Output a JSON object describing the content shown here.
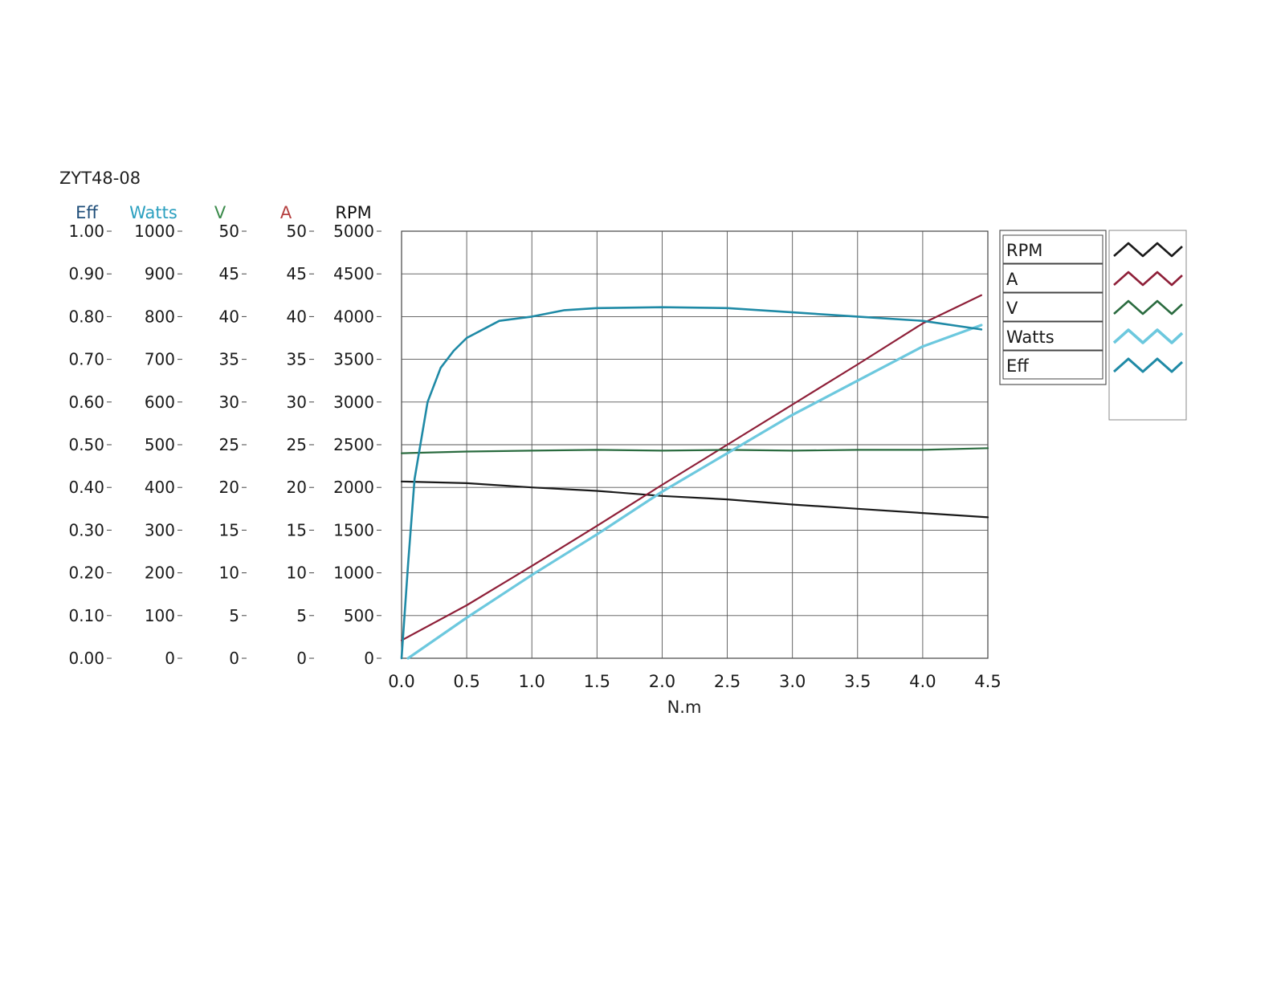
{
  "chart_data": {
    "type": "line",
    "title": "ZYT48-08",
    "xlabel": "N.m",
    "xlim": [
      0,
      4.5
    ],
    "x_ticks": [
      "0.0",
      "0.5",
      "1.0",
      "1.5",
      "2.0",
      "2.5",
      "3.0",
      "3.5",
      "4.0",
      "4.5"
    ],
    "grid": true,
    "legend_position": "right",
    "axes": [
      {
        "name": "Eff",
        "color": "#1f4e79",
        "min": 0,
        "max": 1.0,
        "ticks": [
          "0.00",
          "0.10",
          "0.20",
          "0.30",
          "0.40",
          "0.50",
          "0.60",
          "0.70",
          "0.80",
          "0.90",
          "1.00"
        ]
      },
      {
        "name": "Watts",
        "color": "#2a9fbf",
        "min": 0,
        "max": 1000,
        "ticks": [
          "0",
          "100",
          "200",
          "300",
          "400",
          "500",
          "600",
          "700",
          "800",
          "900",
          "1000"
        ]
      },
      {
        "name": "V",
        "color": "#3a8a4a",
        "min": 0,
        "max": 50,
        "ticks": [
          "0",
          "5",
          "10",
          "15",
          "20",
          "25",
          "30",
          "35",
          "40",
          "45",
          "50"
        ]
      },
      {
        "name": "A",
        "color": "#b54040",
        "min": 0,
        "max": 50,
        "ticks": [
          "0",
          "5",
          "10",
          "15",
          "20",
          "25",
          "30",
          "35",
          "40",
          "45",
          "50"
        ]
      },
      {
        "name": "RPM",
        "color": "#111111",
        "min": 0,
        "max": 5000,
        "ticks": [
          "0",
          "500",
          "1000",
          "1500",
          "2000",
          "2500",
          "3000",
          "3500",
          "4000",
          "4500",
          "5000"
        ]
      }
    ],
    "legend": [
      "RPM",
      "A",
      "V",
      "Watts",
      "Eff"
    ],
    "series": [
      {
        "name": "RPM",
        "axis": "RPM",
        "color": "#1a1a1a",
        "width": 2.2,
        "x": [
          0.0,
          0.5,
          1.0,
          1.5,
          2.0,
          2.5,
          3.0,
          3.5,
          4.0,
          4.5
        ],
        "y": [
          2070,
          2050,
          2000,
          1960,
          1900,
          1860,
          1800,
          1750,
          1700,
          1650
        ]
      },
      {
        "name": "A",
        "axis": "A",
        "color": "#8e1f38",
        "width": 2.2,
        "x": [
          0.0,
          0.5,
          1.0,
          1.5,
          2.0,
          2.5,
          3.0,
          3.5,
          4.0,
          4.45
        ],
        "y": [
          2.1,
          6.2,
          10.8,
          15.5,
          20.3,
          25.0,
          29.7,
          34.4,
          39.2,
          42.5
        ]
      },
      {
        "name": "V",
        "axis": "V",
        "color": "#2a6b3f",
        "width": 2.2,
        "x": [
          0.0,
          0.5,
          1.0,
          1.5,
          2.0,
          2.5,
          3.0,
          3.5,
          4.0,
          4.5
        ],
        "y": [
          24.0,
          24.2,
          24.3,
          24.4,
          24.3,
          24.4,
          24.3,
          24.4,
          24.4,
          24.6
        ]
      },
      {
        "name": "Watts",
        "axis": "Watts",
        "color": "#6cc8de",
        "width": 3.2,
        "x": [
          0.05,
          0.5,
          1.0,
          1.5,
          2.0,
          2.5,
          3.0,
          3.5,
          4.0,
          4.45
        ],
        "y": [
          0,
          95,
          195,
          290,
          390,
          480,
          570,
          650,
          730,
          780
        ]
      },
      {
        "name": "Eff",
        "axis": "Eff",
        "color": "#1f8aa6",
        "width": 2.6,
        "x": [
          0.0,
          0.05,
          0.1,
          0.2,
          0.3,
          0.4,
          0.5,
          0.75,
          1.0,
          1.25,
          1.5,
          2.0,
          2.5,
          3.0,
          3.5,
          4.0,
          4.45
        ],
        "y": [
          0.0,
          0.22,
          0.42,
          0.6,
          0.68,
          0.72,
          0.75,
          0.79,
          0.8,
          0.815,
          0.82,
          0.822,
          0.82,
          0.81,
          0.8,
          0.79,
          0.77
        ]
      }
    ]
  }
}
